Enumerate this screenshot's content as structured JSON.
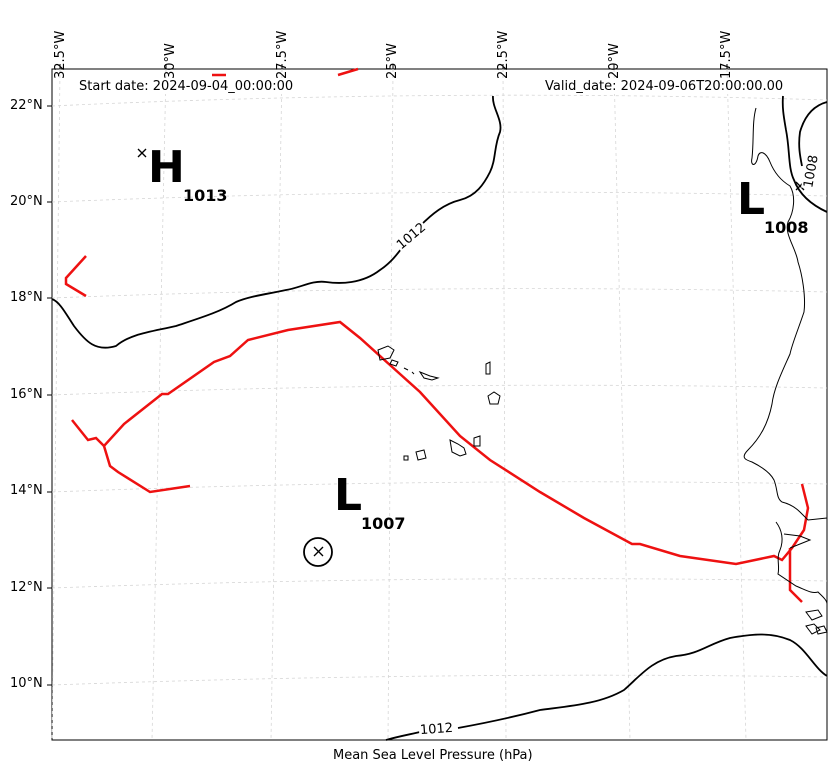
{
  "header": {
    "start_date": "Start date: 2024-09-04_00:00:00",
    "valid_date": "Valid_date: 2024-09-06T20:00:00.00"
  },
  "caption": "Mean Sea Level Pressure (hPa)",
  "longitude_labels": [
    "32.5°W",
    "30°W",
    "27.5°W",
    "25°W",
    "22.5°W",
    "20°W",
    "17.5°W"
  ],
  "latitude_labels": [
    "22°N",
    "20°N",
    "18°N",
    "16°N",
    "14°N",
    "12°N",
    "10°N"
  ],
  "pressure_systems": [
    {
      "type": "H",
      "value": "1013"
    },
    {
      "type": "L",
      "value": "1008"
    },
    {
      "type": "L",
      "value": "1007"
    }
  ],
  "contour_labels": [
    "1012",
    "1012",
    "1008"
  ],
  "colors": {
    "track": "#ee1111",
    "isobar": "#000000",
    "coastline": "#000000",
    "grid": "#d0d0d0"
  }
}
